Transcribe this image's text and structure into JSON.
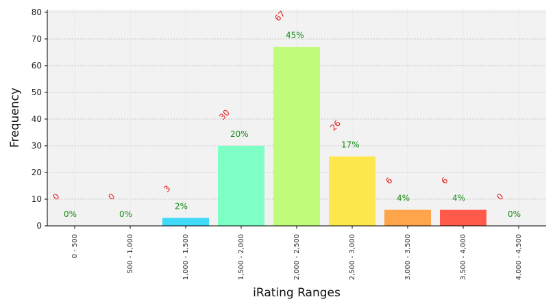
{
  "chart_data": {
    "type": "bar",
    "title": "",
    "xlabel": "iRating Ranges",
    "ylabel": "Frequency",
    "ylim": [
      0,
      81
    ],
    "yticks": [
      0,
      10,
      20,
      30,
      40,
      50,
      60,
      70,
      80
    ],
    "grid": true,
    "categories": [
      "0 - 500",
      "500 - 1,000",
      "1,000 - 1,500",
      "1,500 - 2,000",
      "2,000 - 2,500",
      "2,500 - 3,000",
      "3,000 - 3,500",
      "3,500 - 4,000",
      "4,000 - 4,500"
    ],
    "values": [
      0,
      0,
      3,
      30,
      67,
      26,
      6,
      6,
      0
    ],
    "count_labels": [
      "0",
      "0",
      "3",
      "30",
      "67",
      "26",
      "6",
      "6",
      "0"
    ],
    "percent_labels": [
      "0%",
      "0%",
      "2%",
      "20%",
      "45%",
      "17%",
      "4%",
      "4%",
      "0%"
    ],
    "bar_colors": [
      "#3a0ca3",
      "#4361ee",
      "#40d9f7",
      "#7dffc5",
      "#c1fb7a",
      "#fde74c",
      "#fea54b",
      "#ff5a4a",
      "#d90000"
    ],
    "count_label_color": "#e31a1c",
    "percent_label_color": "#1a8a1a",
    "plot_background": "#f2f2f2",
    "grid_color": "#bbbbbb"
  }
}
